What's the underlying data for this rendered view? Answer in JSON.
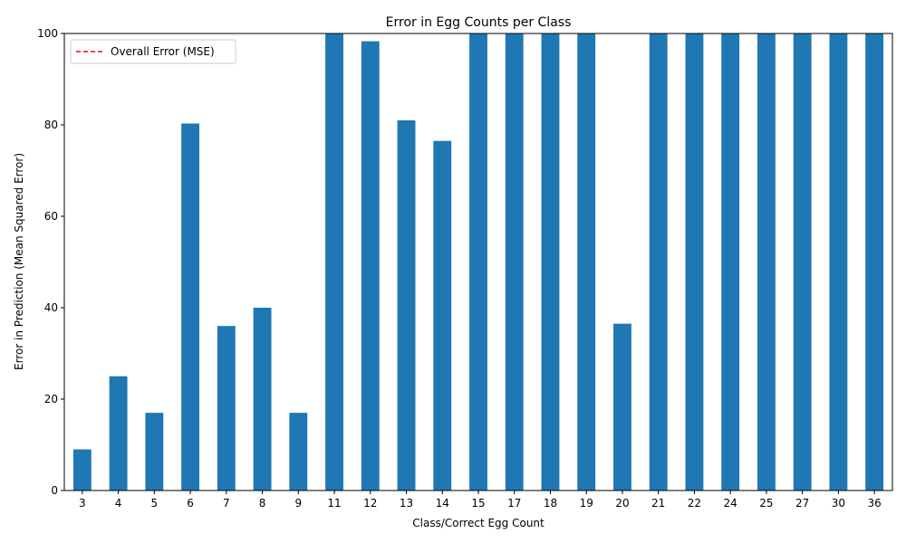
{
  "chart_data": {
    "type": "bar",
    "title": "Error in Egg Counts per Class",
    "xlabel": "Class/Correct Egg Count",
    "ylabel": "Error in Prediction (Mean Squared Error)",
    "ylim": [
      0,
      100
    ],
    "yticks": [
      0,
      20,
      40,
      60,
      80,
      100
    ],
    "categories": [
      "3",
      "4",
      "5",
      "6",
      "7",
      "8",
      "9",
      "11",
      "12",
      "13",
      "14",
      "15",
      "17",
      "18",
      "19",
      "20",
      "21",
      "22",
      "24",
      "25",
      "27",
      "30",
      "36"
    ],
    "values": [
      9,
      25,
      17,
      80.3,
      36,
      40,
      17,
      100,
      98.3,
      81,
      76.5,
      100,
      100,
      100,
      100,
      36.5,
      100,
      100,
      100,
      100,
      100,
      100,
      100
    ],
    "bar_color": "#1f77b4",
    "legend": {
      "position": "upper-left",
      "entries": [
        {
          "label": "Overall Error (MSE)",
          "color": "#ff0000",
          "style": "dashed"
        }
      ]
    }
  }
}
